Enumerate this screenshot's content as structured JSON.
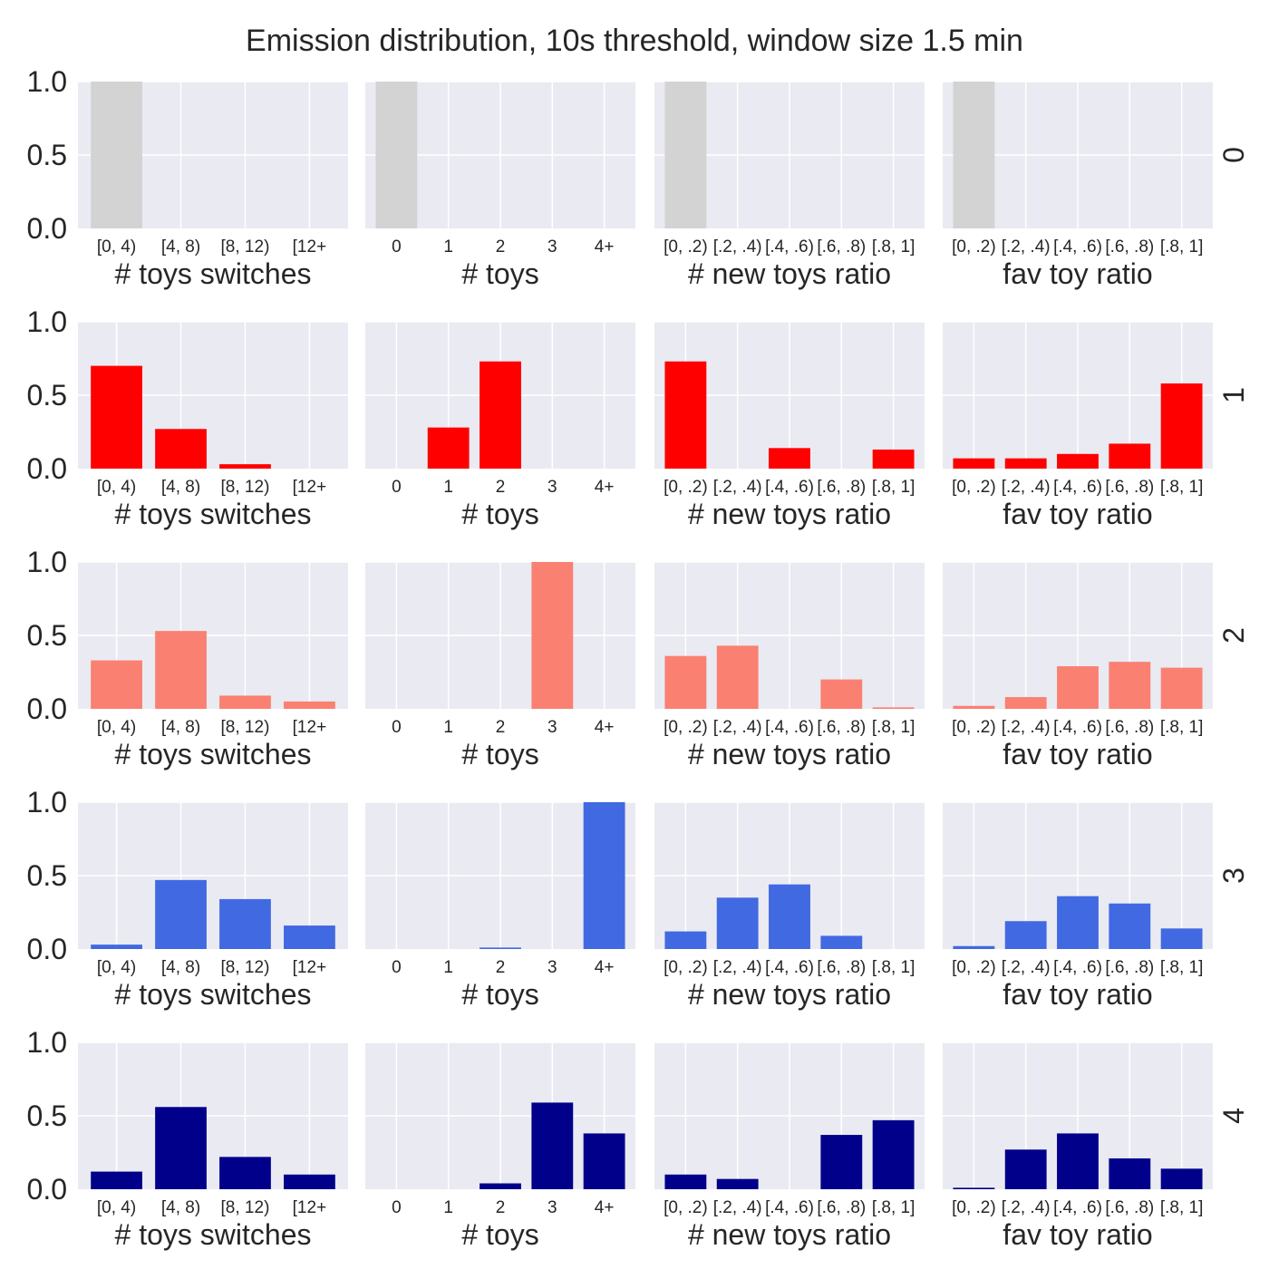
{
  "chart_data": {
    "type": "bar",
    "title": "Emission distribution, 10s threshold, window size 1.5 min",
    "ylim": [
      0,
      1
    ],
    "yticks": [
      "0.0",
      "0.5",
      "1.0"
    ],
    "grid": true,
    "columns": [
      {
        "xlabel": "# toys switches",
        "categories": [
          "[0, 4)",
          "[4, 8)",
          "[8, 12)",
          "[12+"
        ]
      },
      {
        "xlabel": "# toys",
        "categories": [
          "0",
          "1",
          "2",
          "3",
          "4+"
        ]
      },
      {
        "xlabel": "# new toys ratio",
        "categories": [
          "[0, .2)",
          "[.2, .4)",
          "[.4, .6)",
          "[.6, .8)",
          "[.8, 1]"
        ]
      },
      {
        "xlabel": "fav toy ratio",
        "categories": [
          "[0, .2)",
          "[.2, .4)",
          "[.4, .6)",
          "[.6, .8)",
          "[.8, 1]"
        ]
      }
    ],
    "rows": [
      {
        "label": "0",
        "color": "#d3d3d3",
        "values": [
          [
            1,
            0,
            0,
            0
          ],
          [
            1,
            0,
            0,
            0,
            0
          ],
          [
            1,
            0,
            0,
            0,
            0
          ],
          [
            1,
            0,
            0,
            0,
            0
          ]
        ]
      },
      {
        "label": "1",
        "color": "#ff0000",
        "values": [
          [
            0.7,
            0.27,
            0.03,
            0
          ],
          [
            0,
            0.28,
            0.73,
            0,
            0
          ],
          [
            0.73,
            0,
            0.14,
            0,
            0.13
          ],
          [
            0.07,
            0.07,
            0.1,
            0.17,
            0.58
          ]
        ]
      },
      {
        "label": "2",
        "color": "#fa8072",
        "values": [
          [
            0.33,
            0.53,
            0.09,
            0.05
          ],
          [
            0,
            0,
            0,
            1.0,
            0
          ],
          [
            0.36,
            0.43,
            0,
            0.2,
            0.01
          ],
          [
            0.02,
            0.08,
            0.29,
            0.32,
            0.28
          ]
        ]
      },
      {
        "label": "3",
        "color": "#4169e1",
        "values": [
          [
            0.03,
            0.47,
            0.34,
            0.16
          ],
          [
            0,
            0,
            0.01,
            0,
            1.0
          ],
          [
            0.12,
            0.35,
            0.44,
            0.09,
            0
          ],
          [
            0.02,
            0.19,
            0.36,
            0.31,
            0.14
          ]
        ]
      },
      {
        "label": "4",
        "color": "#00008b",
        "values": [
          [
            0.12,
            0.56,
            0.22,
            0.1
          ],
          [
            0,
            0,
            0.04,
            0.59,
            0.38
          ],
          [
            0.1,
            0.07,
            0,
            0.37,
            0.47
          ],
          [
            0.01,
            0.27,
            0.38,
            0.21,
            0.14
          ]
        ]
      }
    ]
  }
}
